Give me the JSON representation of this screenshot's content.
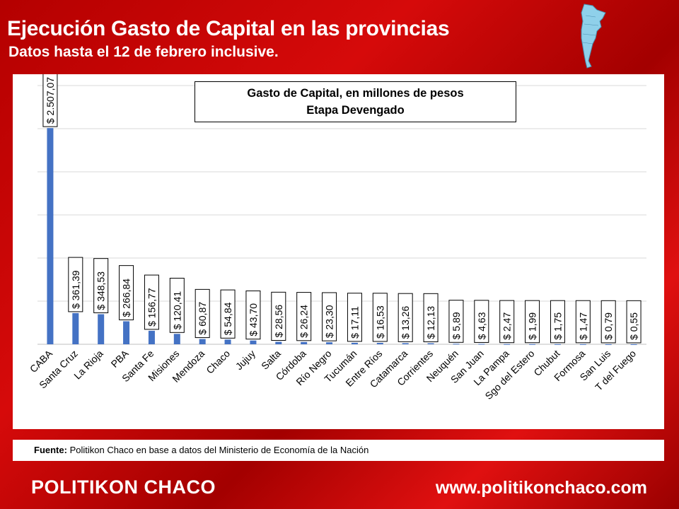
{
  "header": {
    "title": "Ejecución Gasto de Capital en las provincias",
    "subtitle": "Datos hasta el 12 de febrero inclusive."
  },
  "colors": {
    "background": "#c00000",
    "bar": "#4472c4",
    "panel": "#ffffff"
  },
  "chart_data": {
    "type": "bar",
    "title_line1": "Gasto de Capital, en millones de pesos",
    "title_line2": "Etapa Devengado",
    "categories": [
      "CABA",
      "Santa Cruz",
      "La Rioja",
      "PBA",
      "Santa Fe",
      "Misiones",
      "Mendoza",
      "Chaco",
      "Jujuy",
      "Salta",
      "Córdoba",
      "Río Negro",
      "Tucumán",
      "Entre Ríos",
      "Catamarca",
      "Corrientes",
      "Neuquén",
      "San Juan",
      "La Pampa",
      "Sgo del Estero",
      "Chubut",
      "Formosa",
      "San Luis",
      "T  del Fuego"
    ],
    "values": [
      2507.07,
      361.39,
      348.53,
      266.84,
      156.77,
      120.41,
      60.87,
      54.84,
      43.7,
      28.56,
      26.24,
      23.3,
      17.11,
      16.53,
      13.26,
      12.13,
      5.89,
      4.63,
      2.47,
      1.99,
      1.75,
      1.47,
      0.79,
      0.55
    ],
    "data_labels": [
      "$ 2.507,07",
      "$ 361,39",
      "$ 348,53",
      "$ 266,84",
      "$ 156,77",
      "$ 120,41",
      "$ 60,87",
      "$ 54,84",
      "$ 43,70",
      "$ 28,56",
      "$ 26,24",
      "$ 23,30",
      "$ 17,11",
      "$ 16,53",
      "$ 13,26",
      "$ 12,13",
      "$ 5,89",
      "$ 4,63",
      "$ 2,47",
      "$ 1,99",
      "$ 1,75",
      "$ 1,47",
      "$ 0,79",
      "$ 0,55"
    ],
    "ylim": [
      0,
      3000
    ],
    "grid": true,
    "xlabel": "",
    "ylabel": ""
  },
  "source": {
    "label": "Fuente:",
    "text": " Politikon Chaco en base a datos del Ministerio de Economía de la Nación"
  },
  "footer": {
    "brand": "POLITIKON CHACO",
    "url": "www.politikonchaco.com"
  }
}
